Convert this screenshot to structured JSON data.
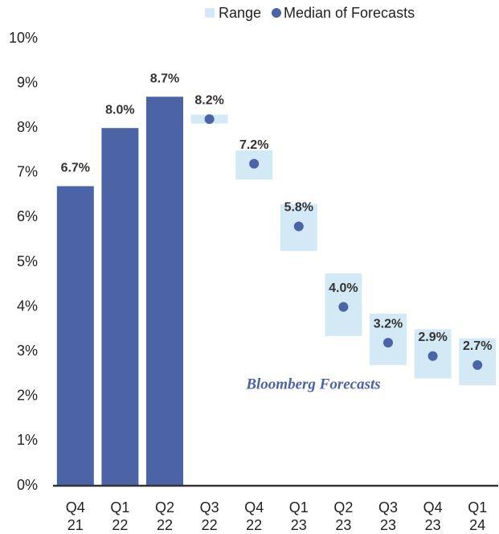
{
  "chart_data": {
    "type": "bar",
    "categories": [
      [
        "Q4",
        "21"
      ],
      [
        "Q1",
        "22"
      ],
      [
        "Q2",
        "22"
      ],
      [
        "Q3",
        "22"
      ],
      [
        "Q4",
        "22"
      ],
      [
        "Q1",
        "23"
      ],
      [
        "Q2",
        "23"
      ],
      [
        "Q3",
        "23"
      ],
      [
        "Q4",
        "23"
      ],
      [
        "Q1",
        "24"
      ]
    ],
    "values": [
      6.7,
      8.0,
      8.7,
      null,
      null,
      null,
      null,
      null,
      null,
      null
    ],
    "value_labels": [
      "6.7%",
      "8.0%",
      "8.7%",
      null,
      null,
      null,
      null,
      null,
      null,
      null
    ],
    "color": "#4a64a6",
    "series": [
      {
        "name": "Range",
        "color": "#d3e9f6",
        "low": [
          null,
          null,
          null,
          8.1,
          6.85,
          5.25,
          3.35,
          2.7,
          2.4,
          2.25
        ],
        "high": [
          null,
          null,
          null,
          8.3,
          7.5,
          6.3,
          4.75,
          3.85,
          3.5,
          3.3
        ]
      },
      {
        "name": "Median of Forecasts",
        "color": "#4a64a6",
        "values": [
          null,
          null,
          null,
          8.2,
          7.2,
          5.8,
          4.0,
          3.2,
          2.9,
          2.7
        ],
        "value_labels": [
          null,
          null,
          null,
          "8.2%",
          "7.2%",
          "5.8%",
          "4.0%",
          "3.2%",
          "2.9%",
          "2.7%"
        ]
      }
    ],
    "annotation": "Bloomberg Forecasts",
    "ylim": [
      0,
      10
    ],
    "yticks": [
      {
        "value": 0,
        "label": "0%"
      },
      {
        "value": 1,
        "label": "1%"
      },
      {
        "value": 2,
        "label": "2%"
      },
      {
        "value": 3,
        "label": "3%"
      },
      {
        "value": 4,
        "label": "4%"
      },
      {
        "value": 5,
        "label": "5%"
      },
      {
        "value": 6,
        "label": "6%"
      },
      {
        "value": 7,
        "label": "7%"
      },
      {
        "value": 8,
        "label": "8%"
      },
      {
        "value": 9,
        "label": "9%"
      },
      {
        "value": 10,
        "label": "10%"
      }
    ],
    "grid": false
  }
}
